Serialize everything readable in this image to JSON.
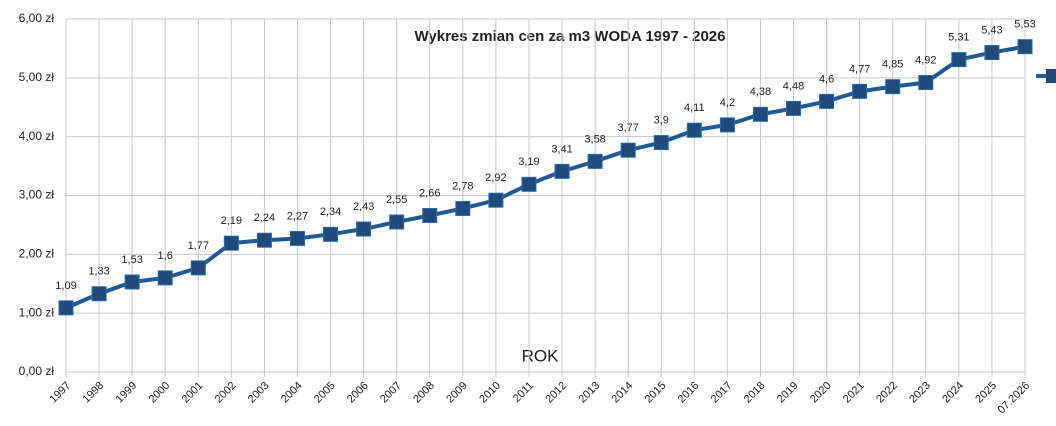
{
  "chart_data": {
    "type": "line",
    "title": "Wykres zmian cen za m3 WODA 1997 - 2026",
    "x_label": "ROK",
    "categories": [
      "1997",
      "1998",
      "1999",
      "2000",
      "2001",
      "2002",
      "2003",
      "2004",
      "2005",
      "2006",
      "2007",
      "2008",
      "2009",
      "2010",
      "2011",
      "2012",
      "2013",
      "2014",
      "2015",
      "2016",
      "2017",
      "2018",
      "2019",
      "2020",
      "2021",
      "2022",
      "2023",
      "2024",
      "2025",
      "07.2026"
    ],
    "series": [
      {
        "color": "#1f5a94",
        "values": [
          1.09,
          1.33,
          1.53,
          1.6,
          1.77,
          2.19,
          2.24,
          2.27,
          2.34,
          2.43,
          2.55,
          2.66,
          2.78,
          2.92,
          3.19,
          3.41,
          3.58,
          3.77,
          3.9,
          4.11,
          4.2,
          4.38,
          4.48,
          4.6,
          4.77,
          4.85,
          4.92,
          5.31,
          5.43,
          5.53
        ],
        "value_labels": [
          "1,09",
          "1,33",
          "1,53",
          "1,6",
          "1,77",
          "2,19",
          "2,24",
          "2,27",
          "2,34",
          "2,43",
          "2,55",
          "2,66",
          "2,78",
          "2,92",
          "3,19",
          "3,41",
          "3,58",
          "3,77",
          "3,9",
          "4,11",
          "4,2",
          "4,38",
          "4,48",
          "4,6",
          "4,77",
          "4,85",
          "4,92",
          "5,31",
          "5,43",
          "5,53"
        ]
      }
    ],
    "ylim": [
      0,
      6
    ],
    "yticks": [
      {
        "value": 0,
        "label": "0,00 zł"
      },
      {
        "value": 1,
        "label": "1,00 zł"
      },
      {
        "value": 2,
        "label": "2,00 zł"
      },
      {
        "value": 3,
        "label": "3,00 zł"
      },
      {
        "value": 4,
        "label": "4,00 zł"
      },
      {
        "value": 5,
        "label": "5,00 zł"
      },
      {
        "value": 6,
        "label": "6,00 zł"
      }
    ],
    "grid": true
  }
}
